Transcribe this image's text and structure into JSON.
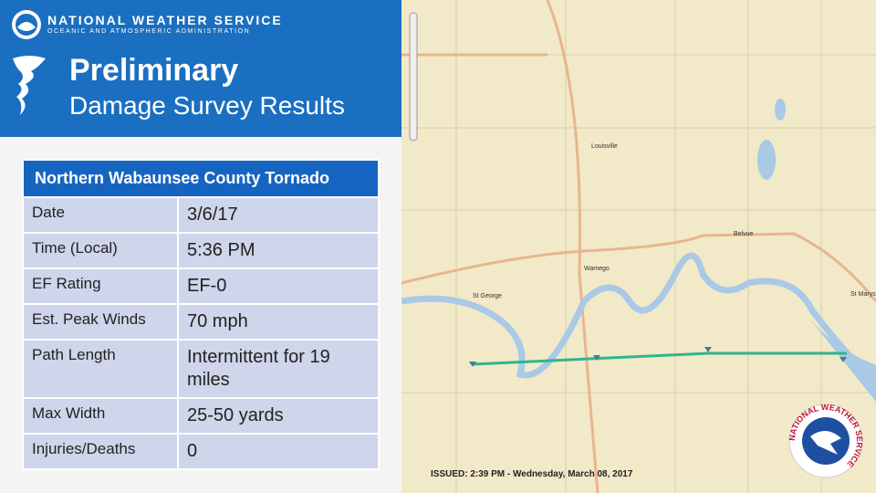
{
  "header": {
    "agency": "NATIONAL WEATHER SERVICE",
    "subagency": "OCEANIC AND ATMOSPHERIC ADMINISTRATION",
    "title": "Preliminary",
    "subtitle": "Damage Survey Results"
  },
  "table": {
    "title": "Northern Wabaunsee County Tornado",
    "rows": [
      [
        "Date",
        "3/6/17"
      ],
      [
        "Time (Local)",
        "5:36 PM"
      ],
      [
        "EF Rating",
        "EF-0"
      ],
      [
        "Est. Peak Winds",
        "70 mph"
      ],
      [
        "Path Length",
        "Intermittent for 19 miles"
      ],
      [
        "Max Width",
        "25-50 yards"
      ],
      [
        "Injuries/Deaths",
        "0"
      ]
    ]
  },
  "map": {
    "places": [
      "Louisville",
      "Wamego",
      "Belvue",
      "St George",
      "St Marys"
    ],
    "issued": "ISSUED: 2:39 PM - Wednesday, March 08, 2017",
    "logo_text": "NATIONAL WEATHER SERVICE"
  }
}
